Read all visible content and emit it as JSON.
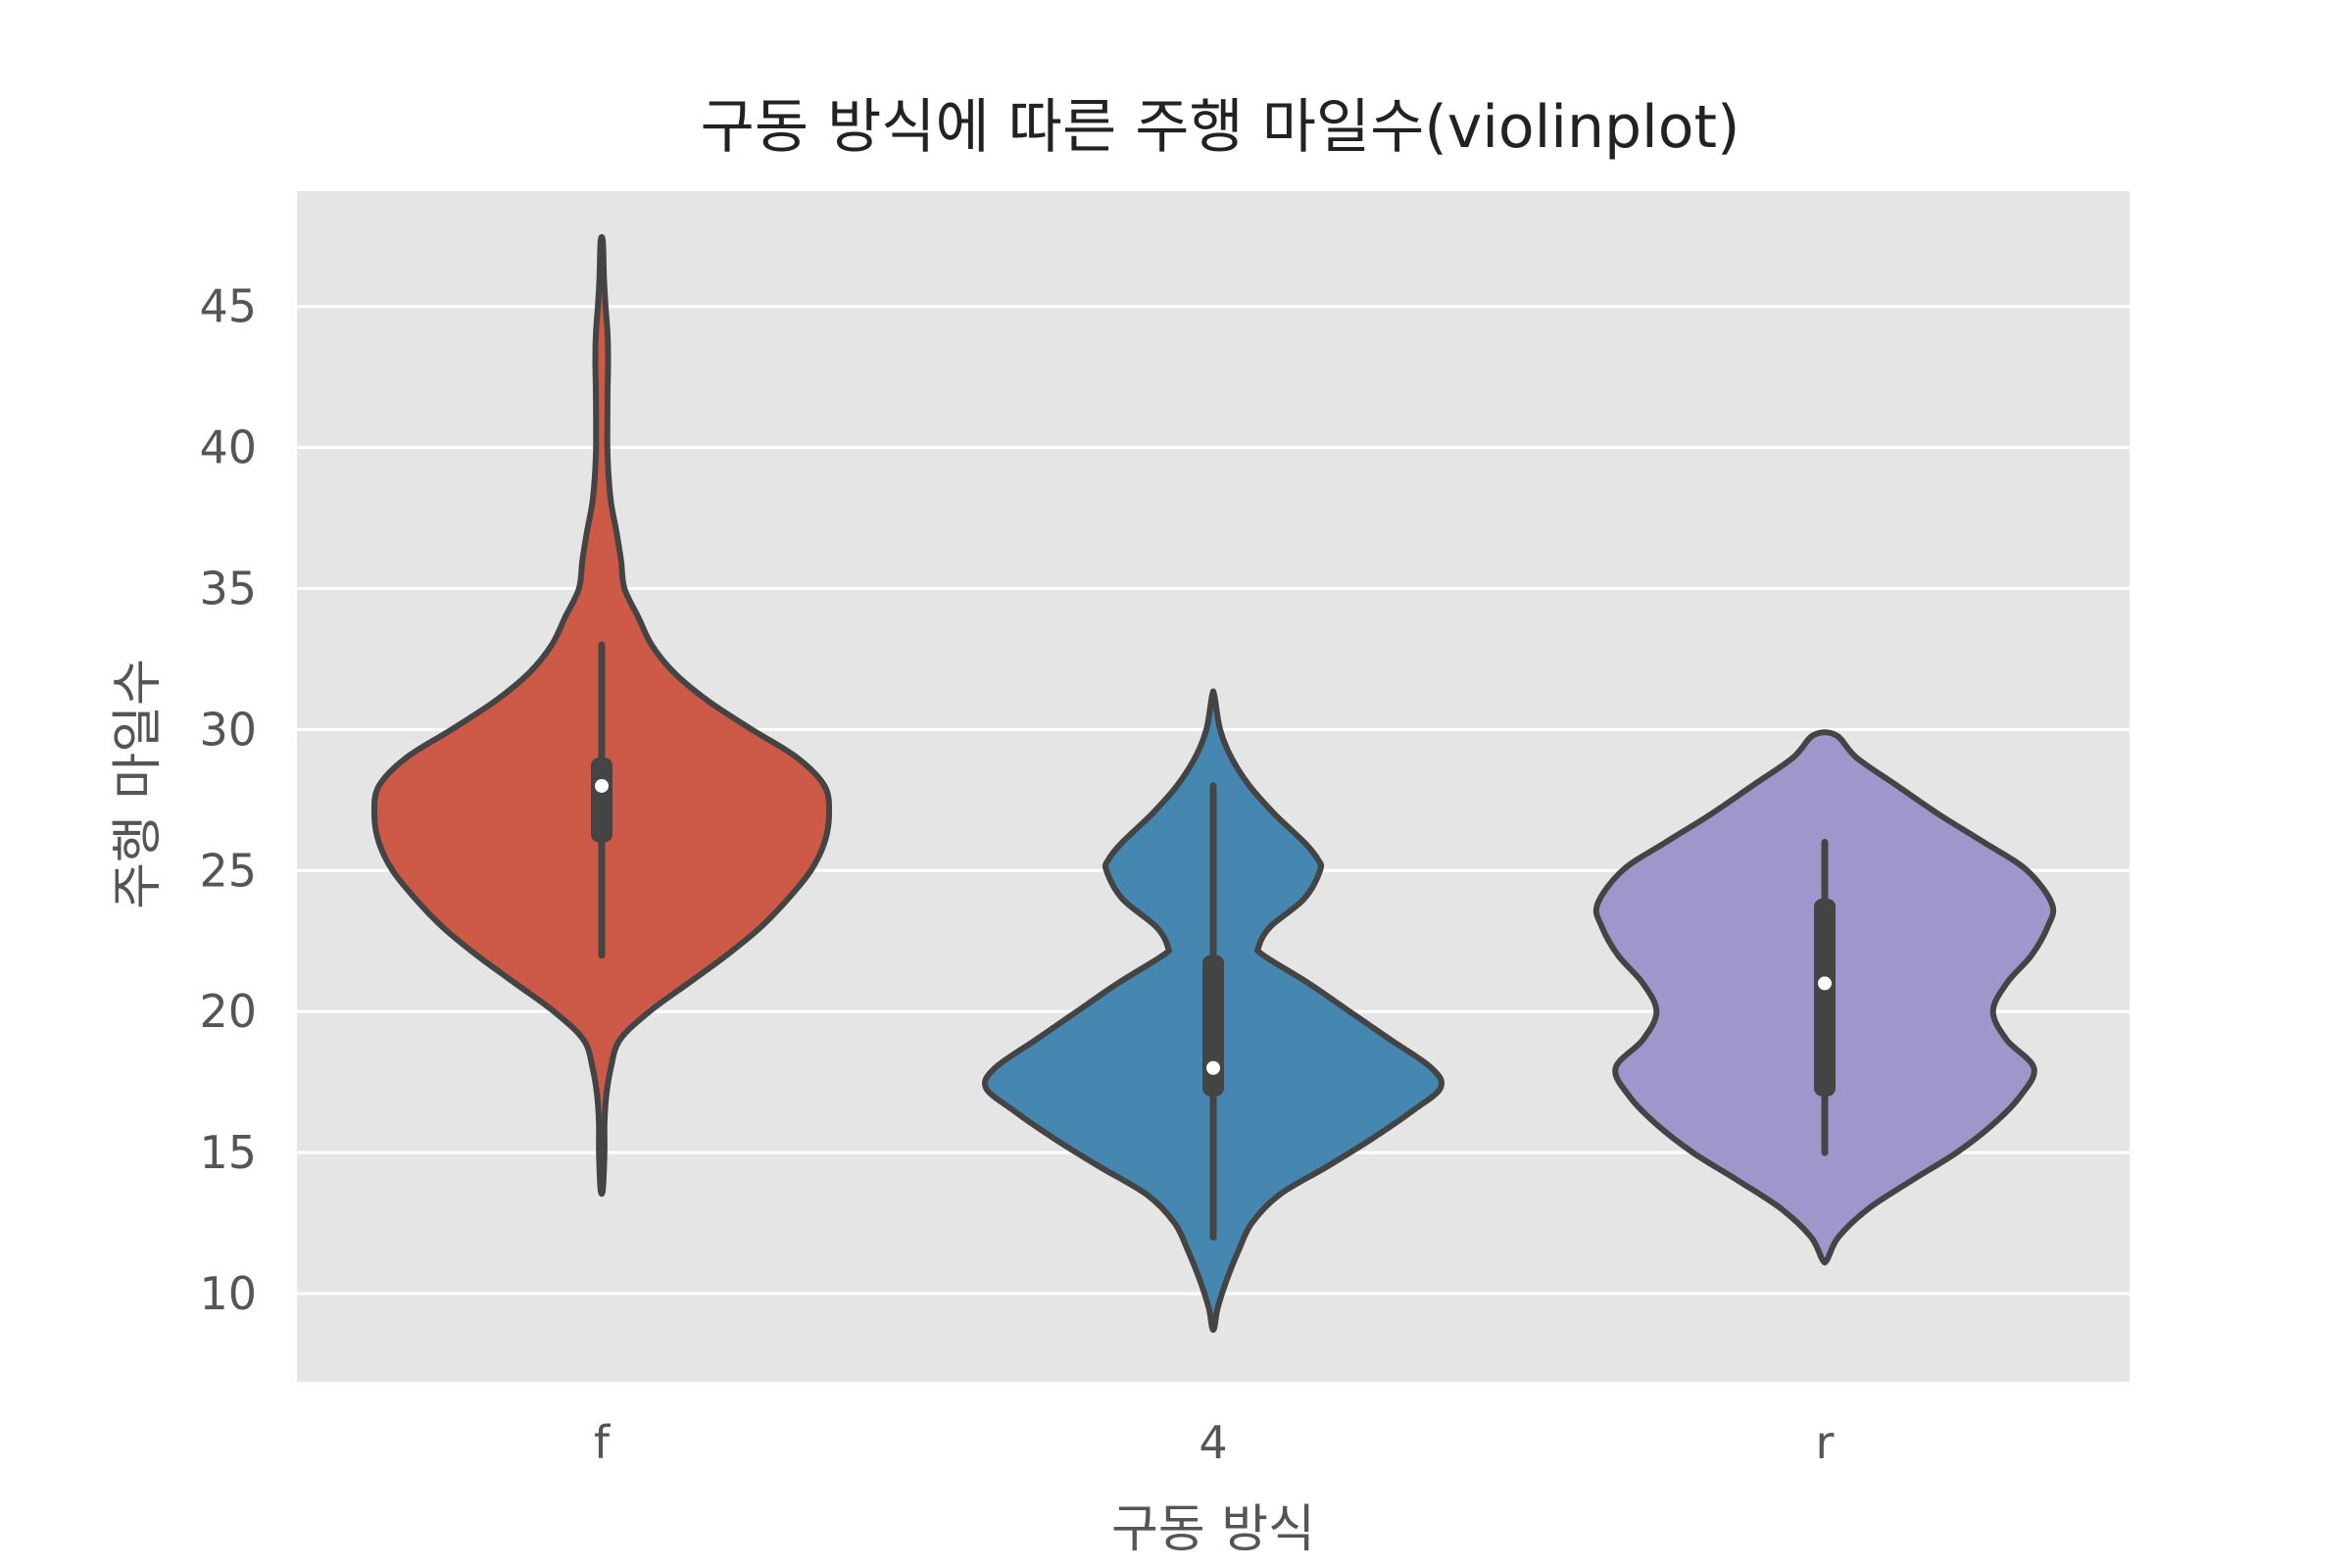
{
  "chart_data": {
    "type": "violin",
    "title": "구동 방식에 따른 주행 마일수(violinplot)",
    "xlabel": "구동 방식",
    "ylabel": "주행 마일수",
    "categories": [
      "f",
      "4",
      "r"
    ],
    "ylim": [
      7,
      49
    ],
    "yticks": [
      10,
      15,
      20,
      25,
      30,
      35,
      40,
      45
    ],
    "grid": true,
    "colors": {
      "background": "#e5e5e5",
      "grid": "#ffffff",
      "outline": "#444444",
      "f": "#cc5a47",
      "4": "#4587b0",
      "r": "#9e97cc"
    },
    "violins": [
      {
        "category": "f",
        "min": 14,
        "max": 44,
        "q1": 26,
        "median": 28,
        "q3": 29,
        "whisker_low": 22,
        "whisker_high": 33,
        "clip_low": 13.7,
        "clip_high": 47.3,
        "density": [
          [
            13.7,
            0.005
          ],
          [
            15,
            0.012
          ],
          [
            16,
            0.012
          ],
          [
            17,
            0.02
          ],
          [
            18,
            0.04
          ],
          [
            19,
            0.08
          ],
          [
            20,
            0.21
          ],
          [
            21,
            0.38
          ],
          [
            22,
            0.55
          ],
          [
            23,
            0.7
          ],
          [
            24,
            0.82
          ],
          [
            25,
            0.92
          ],
          [
            26,
            0.98
          ],
          [
            27,
            1.0
          ],
          [
            28,
            0.98
          ],
          [
            29,
            0.86
          ],
          [
            30,
            0.66
          ],
          [
            31,
            0.47
          ],
          [
            32,
            0.32
          ],
          [
            33,
            0.22
          ],
          [
            34,
            0.16
          ],
          [
            35,
            0.1
          ],
          [
            36,
            0.085
          ],
          [
            37,
            0.065
          ],
          [
            38,
            0.042
          ],
          [
            39,
            0.03
          ],
          [
            40,
            0.025
          ],
          [
            41,
            0.025
          ],
          [
            42,
            0.026
          ],
          [
            43,
            0.028
          ],
          [
            44,
            0.026
          ],
          [
            45,
            0.017
          ],
          [
            46,
            0.01
          ],
          [
            47.3,
            0.005
          ]
        ]
      },
      {
        "category": "4",
        "min": 12,
        "max": 28,
        "q1": 17,
        "median": 18,
        "q3": 22,
        "whisker_low": 12,
        "whisker_high": 28,
        "clip_low": 8.8,
        "clip_high": 31.2,
        "density": [
          [
            8.8,
            0.005
          ],
          [
            9.5,
            0.02
          ],
          [
            10.5,
            0.06
          ],
          [
            11.5,
            0.11
          ],
          [
            12.5,
            0.17
          ],
          [
            13.5,
            0.29
          ],
          [
            14.5,
            0.5
          ],
          [
            15.5,
            0.7
          ],
          [
            16.5,
            0.88
          ],
          [
            17.3,
            1.0
          ],
          [
            18,
            0.96
          ],
          [
            19,
            0.78
          ],
          [
            20,
            0.6
          ],
          [
            21,
            0.42
          ],
          [
            22,
            0.22
          ],
          [
            22.3,
            0.2
          ],
          [
            23,
            0.25
          ],
          [
            24,
            0.4
          ],
          [
            25,
            0.47
          ],
          [
            25.4,
            0.46
          ],
          [
            26,
            0.4
          ],
          [
            27,
            0.27
          ],
          [
            28,
            0.16
          ],
          [
            29,
            0.08
          ],
          [
            30,
            0.03
          ],
          [
            31.2,
            0.005
          ]
        ]
      },
      {
        "category": "r",
        "min": 15,
        "max": 26,
        "q1": 17,
        "median": 21,
        "q3": 24,
        "whisker_low": 15,
        "whisker_high": 26,
        "clip_low": 11.2,
        "clip_high": 29.8,
        "density": [
          [
            11.2,
            0.01
          ],
          [
            12,
            0.06
          ],
          [
            13,
            0.19
          ],
          [
            14,
            0.38
          ],
          [
            15,
            0.58
          ],
          [
            16,
            0.74
          ],
          [
            17,
            0.86
          ],
          [
            18,
            0.92
          ],
          [
            19,
            0.8
          ],
          [
            20,
            0.74
          ],
          [
            21,
            0.8
          ],
          [
            22,
            0.91
          ],
          [
            23,
            0.98
          ],
          [
            23.8,
            1.0
          ],
          [
            25,
            0.89
          ],
          [
            26,
            0.7
          ],
          [
            27,
            0.5
          ],
          [
            28,
            0.32
          ],
          [
            29,
            0.14
          ],
          [
            29.8,
            0.05
          ]
        ]
      }
    ]
  }
}
